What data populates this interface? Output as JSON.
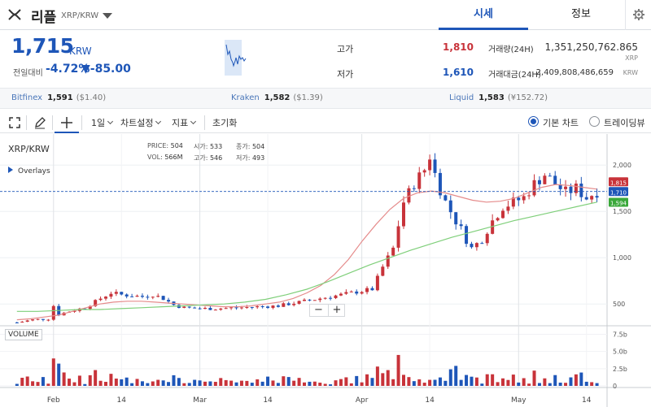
{
  "header": {
    "coin_name": "리플",
    "pair": "XRP/KRW",
    "tabs": [
      {
        "label": "시세",
        "active": true
      },
      {
        "label": "정보",
        "active": false
      }
    ],
    "logo_icon": "xrp-logo-icon",
    "settings_icon": "gear-icon"
  },
  "summary": {
    "price": "1,715",
    "price_unit": "KRW",
    "prev_label": "전일대비",
    "change_pct": "-4.72%",
    "change_amt": "▼-85.00",
    "high_label": "고가",
    "high_value": "1,810",
    "low_label": "저가",
    "low_value": "1,610",
    "volume_label": "거래량(24H)",
    "volume_value": "1,351,250,762.865",
    "volume_unit": "XRP",
    "turnover_label": "거래대금(24H)",
    "turnover_value": "2,409,808,486,659",
    "turnover_unit": "KRW"
  },
  "exchanges": [
    {
      "name": "Bitfinex",
      "price": "1,591",
      "usd": "($1.40)"
    },
    {
      "name": "Kraken",
      "price": "1,582",
      "usd": "($1.39)"
    },
    {
      "name": "Liquid",
      "price": "1,583",
      "usd": "(¥152.72)"
    }
  ],
  "toolbar": {
    "fullscreen_icon": "fullscreen-icon",
    "draw_icon": "pencil-icon",
    "crosshair_icon": "crosshair-icon",
    "interval": "1일",
    "chart_settings": "차트설정",
    "indicators": "지표",
    "reset": "초기화",
    "basic_chart": "기본 차트",
    "tradingview": "트레이딩뷰"
  },
  "chart": {
    "symbol": "XRP/KRW",
    "overlays_label": "Overlays",
    "ohlc": {
      "price_label": "PRICE:",
      "price": "504",
      "vol_label": "VOL:",
      "vol": "566M",
      "open_label": "시가:",
      "open": "533",
      "high_label": "고가:",
      "high": "546",
      "close_label": "종가:",
      "close": "504",
      "low_label": "저가:",
      "low": "493"
    },
    "volume_label": "VOLUME",
    "zoom_minus": "−",
    "zoom_plus": "+",
    "price_ticks": [
      "2,000",
      "1,500",
      "1,000",
      "500"
    ],
    "volume_ticks": [
      "7.5b",
      "5.0b",
      "2.5b",
      "0"
    ],
    "date_ticks": [
      "Feb",
      "14",
      "Mar",
      "14",
      "Apr",
      "14",
      "May",
      "14"
    ],
    "last_price_tags": [
      "1,815",
      "1,710",
      "1,594"
    ],
    "colors": {
      "up": "#c8333a",
      "down": "#1e56b8",
      "ma_short": "#e58b8b",
      "ma_long": "#7fcf7a",
      "accent": "#1e56b8"
    }
  },
  "chart_data": {
    "type": "candlestick",
    "x_range": [
      "2021-01-23",
      "2021-05-17"
    ],
    "ylim": [
      300,
      2300
    ],
    "price_ticks": [
      500,
      1000,
      1500,
      2000
    ],
    "volume_ylim": [
      0,
      8500000000
    ],
    "volume_ticks": [
      0,
      2500000000,
      5000000000,
      7500000000
    ],
    "close_path": [
      [
        "01-25",
        300
      ],
      [
        "01-28",
        330
      ],
      [
        "01-31",
        340
      ],
      [
        "02-01",
        480
      ],
      [
        "02-02",
        390
      ],
      [
        "02-04",
        420
      ],
      [
        "02-07",
        460
      ],
      [
        "02-10",
        560
      ],
      [
        "02-12",
        620
      ],
      [
        "02-14",
        600
      ],
      [
        "02-16",
        590
      ],
      [
        "02-18",
        580
      ],
      [
        "02-20",
        600
      ],
      [
        "02-22",
        560
      ],
      [
        "02-24",
        490
      ],
      [
        "02-26",
        460
      ],
      [
        "03-01",
        450
      ],
      [
        "03-04",
        450
      ],
      [
        "03-08",
        460
      ],
      [
        "03-12",
        470
      ],
      [
        "03-16",
        480
      ],
      [
        "03-20",
        520
      ],
      [
        "03-24",
        560
      ],
      [
        "03-28",
        600
      ],
      [
        "04-01",
        640
      ],
      [
        "04-03",
        660
      ],
      [
        "04-05",
        900
      ],
      [
        "04-07",
        1100
      ],
      [
        "04-09",
        1600
      ],
      [
        "04-11",
        1800
      ],
      [
        "04-13",
        1950
      ],
      [
        "04-14",
        2100
      ],
      [
        "04-15",
        1900
      ],
      [
        "04-17",
        1600
      ],
      [
        "04-18",
        1500
      ],
      [
        "04-20",
        1300
      ],
      [
        "04-22",
        1100
      ],
      [
        "04-24",
        1200
      ],
      [
        "04-26",
        1400
      ],
      [
        "04-28",
        1550
      ],
      [
        "04-30",
        1600
      ],
      [
        "05-02",
        1650
      ],
      [
        "05-04",
        1800
      ],
      [
        "05-06",
        1900
      ],
      [
        "05-08",
        1800
      ],
      [
        "05-10",
        1700
      ],
      [
        "05-12",
        1750
      ],
      [
        "05-14",
        1650
      ],
      [
        "05-16",
        1715
      ]
    ],
    "ma_short": [
      330,
      340,
      360,
      380,
      420,
      460,
      500,
      520,
      530,
      530,
      520,
      510,
      500,
      490,
      480,
      470,
      470,
      480,
      500,
      520,
      560,
      620,
      700,
      820,
      980,
      1180,
      1360,
      1520,
      1640,
      1700,
      1720,
      1700,
      1660,
      1620,
      1600,
      1610,
      1640,
      1700,
      1760,
      1790,
      1780,
      1760,
      1740
    ],
    "ma_long": [
      420,
      420,
      430,
      440,
      440,
      450,
      460,
      470,
      480,
      490,
      500,
      520,
      550,
      600,
      660,
      740,
      830,
      920,
      1000,
      1080,
      1150,
      1220,
      1280,
      1340,
      1400,
      1450,
      1500,
      1550,
      1600
    ],
    "current_price": 1715,
    "label": "XRP/KRW daily candlestick with moving averages and volume"
  }
}
